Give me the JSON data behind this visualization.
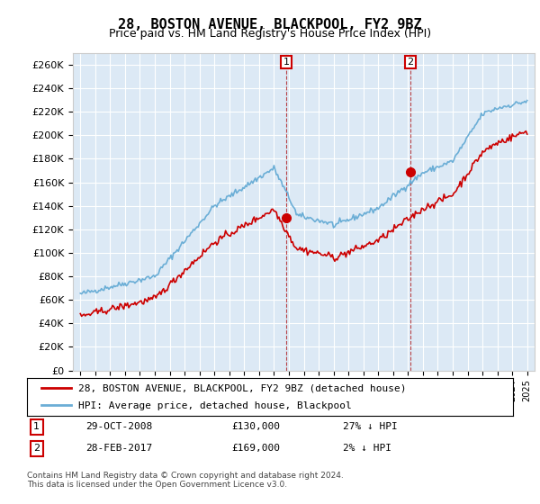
{
  "title": "28, BOSTON AVENUE, BLACKPOOL, FY2 9BZ",
  "subtitle": "Price paid vs. HM Land Registry's House Price Index (HPI)",
  "legend_line1": "28, BOSTON AVENUE, BLACKPOOL, FY2 9BZ (detached house)",
  "legend_line2": "HPI: Average price, detached house, Blackpool",
  "annotation1_label": "1",
  "annotation1_date": "29-OCT-2008",
  "annotation1_price": "£130,000",
  "annotation1_hpi": "27% ↓ HPI",
  "annotation2_label": "2",
  "annotation2_date": "28-FEB-2017",
  "annotation2_price": "£169,000",
  "annotation2_hpi": "2% ↓ HPI",
  "footer": "Contains HM Land Registry data © Crown copyright and database right 2024.\nThis data is licensed under the Open Government Licence v3.0.",
  "hpi_color": "#6baed6",
  "price_color": "#cc0000",
  "background_color": "#ffffff",
  "plot_bg_color": "#dce9f5",
  "grid_color": "#ffffff",
  "ylim": [
    0,
    270000
  ],
  "yticks": [
    0,
    20000,
    40000,
    60000,
    80000,
    100000,
    120000,
    140000,
    160000,
    180000,
    200000,
    220000,
    240000,
    260000
  ],
  "year_start": 1995,
  "year_end": 2025,
  "purchase1_year": 2008.83,
  "purchase1_value": 130000,
  "purchase2_year": 2017.16,
  "purchase2_value": 169000
}
